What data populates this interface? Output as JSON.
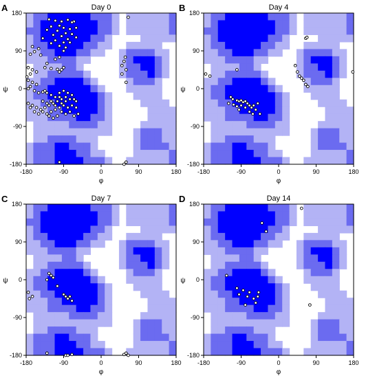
{
  "colors": {
    "core": "#0000ff",
    "allowed": "#6b6bf0",
    "generous": "#b3b3f5",
    "outside": "#ffffff",
    "point_fill": "#ffffff",
    "point_stroke": "#000000"
  },
  "chart_data": [
    {
      "type": "scatter",
      "panel_label": "A",
      "title": "Day 0",
      "xlabel": "φ",
      "ylabel": "ψ",
      "xlim": [
        -180,
        180
      ],
      "ylim": [
        -180,
        180
      ],
      "xticks": [
        "-180",
        "-90",
        "0",
        "90",
        "180"
      ],
      "yticks": [
        "180",
        "90",
        "0",
        "-90",
        "-180"
      ],
      "points": [
        [
          -125,
          165
        ],
        [
          -110,
          162
        ],
        [
          -95,
          160
        ],
        [
          -80,
          164
        ],
        [
          -65,
          160
        ],
        [
          -70,
          158
        ],
        [
          -100,
          150
        ],
        [
          -120,
          148
        ],
        [
          -90,
          145
        ],
        [
          -75,
          142
        ],
        [
          -60,
          145
        ],
        [
          -105,
          138
        ],
        [
          -85,
          132
        ],
        [
          -115,
          128
        ],
        [
          -70,
          130
        ],
        [
          -95,
          125
        ],
        [
          -80,
          118
        ],
        [
          -110,
          115
        ],
        [
          -90,
          110
        ],
        [
          -100,
          102
        ],
        [
          -85,
          98
        ],
        [
          -120,
          108
        ],
        [
          -60,
          122
        ],
        [
          -75,
          110
        ],
        [
          -130,
          140
        ],
        [
          -140,
          120
        ],
        [
          -150,
          95
        ],
        [
          -160,
          88
        ],
        [
          -170,
          82
        ],
        [
          -165,
          100
        ],
        [
          -145,
          80
        ],
        [
          -90,
          90
        ],
        [
          -100,
          75
        ],
        [
          -110,
          70
        ],
        [
          -130,
          60
        ],
        [
          -175,
          50
        ],
        [
          -165,
          45
        ],
        [
          -155,
          40
        ],
        [
          -170,
          35
        ],
        [
          -178,
          28
        ],
        [
          -135,
          50
        ],
        [
          -120,
          48
        ],
        [
          -105,
          46
        ],
        [
          -100,
          40
        ],
        [
          -95,
          45
        ],
        [
          -90,
          50
        ],
        [
          -175,
          20
        ],
        [
          -165,
          15
        ],
        [
          -155,
          10
        ],
        [
          -170,
          5
        ],
        [
          -175,
          0
        ],
        [
          -160,
          -5
        ],
        [
          -150,
          -10
        ],
        [
          -140,
          -8
        ],
        [
          -135,
          -5
        ],
        [
          -130,
          -10
        ],
        [
          -120,
          -15
        ],
        [
          -110,
          -20
        ],
        [
          -100,
          -10
        ],
        [
          -90,
          -5
        ],
        [
          -80,
          -10
        ],
        [
          -70,
          -15
        ],
        [
          -65,
          -25
        ],
        [
          -60,
          -30
        ],
        [
          -75,
          -25
        ],
        [
          -85,
          -20
        ],
        [
          -95,
          -25
        ],
        [
          -105,
          -30
        ],
        [
          -115,
          -35
        ],
        [
          -125,
          -40
        ],
        [
          -135,
          -45
        ],
        [
          -145,
          -50
        ],
        [
          -155,
          -45
        ],
        [
          -165,
          -40
        ],
        [
          -175,
          -35
        ],
        [
          -170,
          -45
        ],
        [
          -160,
          -55
        ],
        [
          -150,
          -60
        ],
        [
          -140,
          -55
        ],
        [
          -130,
          -60
        ],
        [
          -120,
          -55
        ],
        [
          -110,
          -50
        ],
        [
          -100,
          -45
        ],
        [
          -90,
          -40
        ],
        [
          -80,
          -45
        ],
        [
          -70,
          -40
        ],
        [
          -60,
          -45
        ],
        [
          -75,
          -55
        ],
        [
          -85,
          -60
        ],
        [
          -95,
          -55
        ],
        [
          -105,
          -65
        ],
        [
          -115,
          -70
        ],
        [
          -125,
          -65
        ],
        [
          -65,
          -65
        ],
        [
          -55,
          -60
        ],
        [
          -95,
          -35
        ],
        [
          -85,
          -30
        ],
        [
          -100,
          -20
        ],
        [
          -110,
          -40
        ],
        [
          -120,
          -30
        ],
        [
          -140,
          -30
        ],
        [
          -130,
          -35
        ],
        [
          55,
          65
        ],
        [
          50,
          55
        ],
        [
          60,
          45
        ],
        [
          58,
          75
        ],
        [
          50,
          35
        ],
        [
          60,
          15
        ],
        [
          55,
          -180
        ],
        [
          60,
          -175
        ],
        [
          65,
          170
        ],
        [
          -100,
          -175
        ]
      ]
    },
    {
      "type": "scatter",
      "panel_label": "B",
      "title": "Day 4",
      "xlabel": "φ",
      "ylabel": "ψ",
      "xlim": [
        -180,
        180
      ],
      "ylim": [
        -180,
        180
      ],
      "xticks": [
        "-180",
        "-90",
        "0",
        "90",
        "180"
      ],
      "yticks": [
        "180",
        "90",
        "0",
        "-90",
        "-180"
      ],
      "points": [
        [
          -175,
          35
        ],
        [
          -165,
          30
        ],
        [
          -115,
          -20
        ],
        [
          -110,
          -25
        ],
        [
          -100,
          -28
        ],
        [
          -95,
          -30
        ],
        [
          -90,
          -28
        ],
        [
          -85,
          -32
        ],
        [
          -80,
          -30
        ],
        [
          -75,
          -35
        ],
        [
          -70,
          -40
        ],
        [
          -65,
          -45
        ],
        [
          -60,
          -40
        ],
        [
          -55,
          -50
        ],
        [
          -90,
          -40
        ],
        [
          -100,
          -42
        ],
        [
          -108,
          -38
        ],
        [
          -80,
          -45
        ],
        [
          -70,
          -55
        ],
        [
          -62,
          -60
        ],
        [
          -95,
          -50
        ],
        [
          -50,
          -35
        ],
        [
          -45,
          -60
        ],
        [
          -120,
          -35
        ],
        [
          -100,
          45
        ],
        [
          40,
          55
        ],
        [
          45,
          40
        ],
        [
          50,
          30
        ],
        [
          55,
          25
        ],
        [
          60,
          20
        ],
        [
          65,
          10
        ],
        [
          70,
          5
        ],
        [
          65,
          120
        ],
        [
          68,
          122
        ],
        [
          178,
          40
        ]
      ]
    },
    {
      "type": "scatter",
      "panel_label": "C",
      "title": "Day 7",
      "xlabel": "φ",
      "ylabel": "ψ",
      "xlim": [
        -180,
        180
      ],
      "ylim": [
        -180,
        180
      ],
      "xticks": [
        "-180",
        "-90",
        "0",
        "90",
        "180"
      ],
      "yticks": [
        "180",
        "90",
        "0",
        "-90",
        "-180"
      ],
      "points": [
        [
          -175,
          -30
        ],
        [
          -172,
          -45
        ],
        [
          -165,
          -40
        ],
        [
          -130,
          0
        ],
        [
          -125,
          15
        ],
        [
          -120,
          10
        ],
        [
          -115,
          5
        ],
        [
          -105,
          -15
        ],
        [
          -85,
          -40
        ],
        [
          -80,
          -45
        ],
        [
          -90,
          -35
        ],
        [
          -75,
          -40
        ],
        [
          -70,
          -50
        ],
        [
          -130,
          -175
        ],
        [
          -85,
          -180
        ],
        [
          -80,
          -180
        ],
        [
          -70,
          -178
        ],
        [
          55,
          -178
        ],
        [
          60,
          -175
        ],
        [
          65,
          -180
        ]
      ]
    },
    {
      "type": "scatter",
      "panel_label": "D",
      "title": "Day 14",
      "xlabel": "φ",
      "ylabel": "ψ",
      "xlim": [
        -180,
        180
      ],
      "ylim": [
        -180,
        180
      ],
      "xticks": [
        "-180",
        "-90",
        "0",
        "90",
        "180"
      ],
      "yticks": [
        "180",
        "90",
        "0",
        "-90",
        "-180"
      ],
      "points": [
        [
          -125,
          10
        ],
        [
          -100,
          -20
        ],
        [
          -95,
          -35
        ],
        [
          -85,
          -25
        ],
        [
          -75,
          -40
        ],
        [
          -70,
          -30
        ],
        [
          -60,
          -45
        ],
        [
          -55,
          -55
        ],
        [
          -50,
          -40
        ],
        [
          -48,
          -30
        ],
        [
          -80,
          -60
        ],
        [
          -40,
          135
        ],
        [
          -30,
          115
        ],
        [
          55,
          170
        ],
        [
          75,
          -60
        ]
      ]
    }
  ]
}
